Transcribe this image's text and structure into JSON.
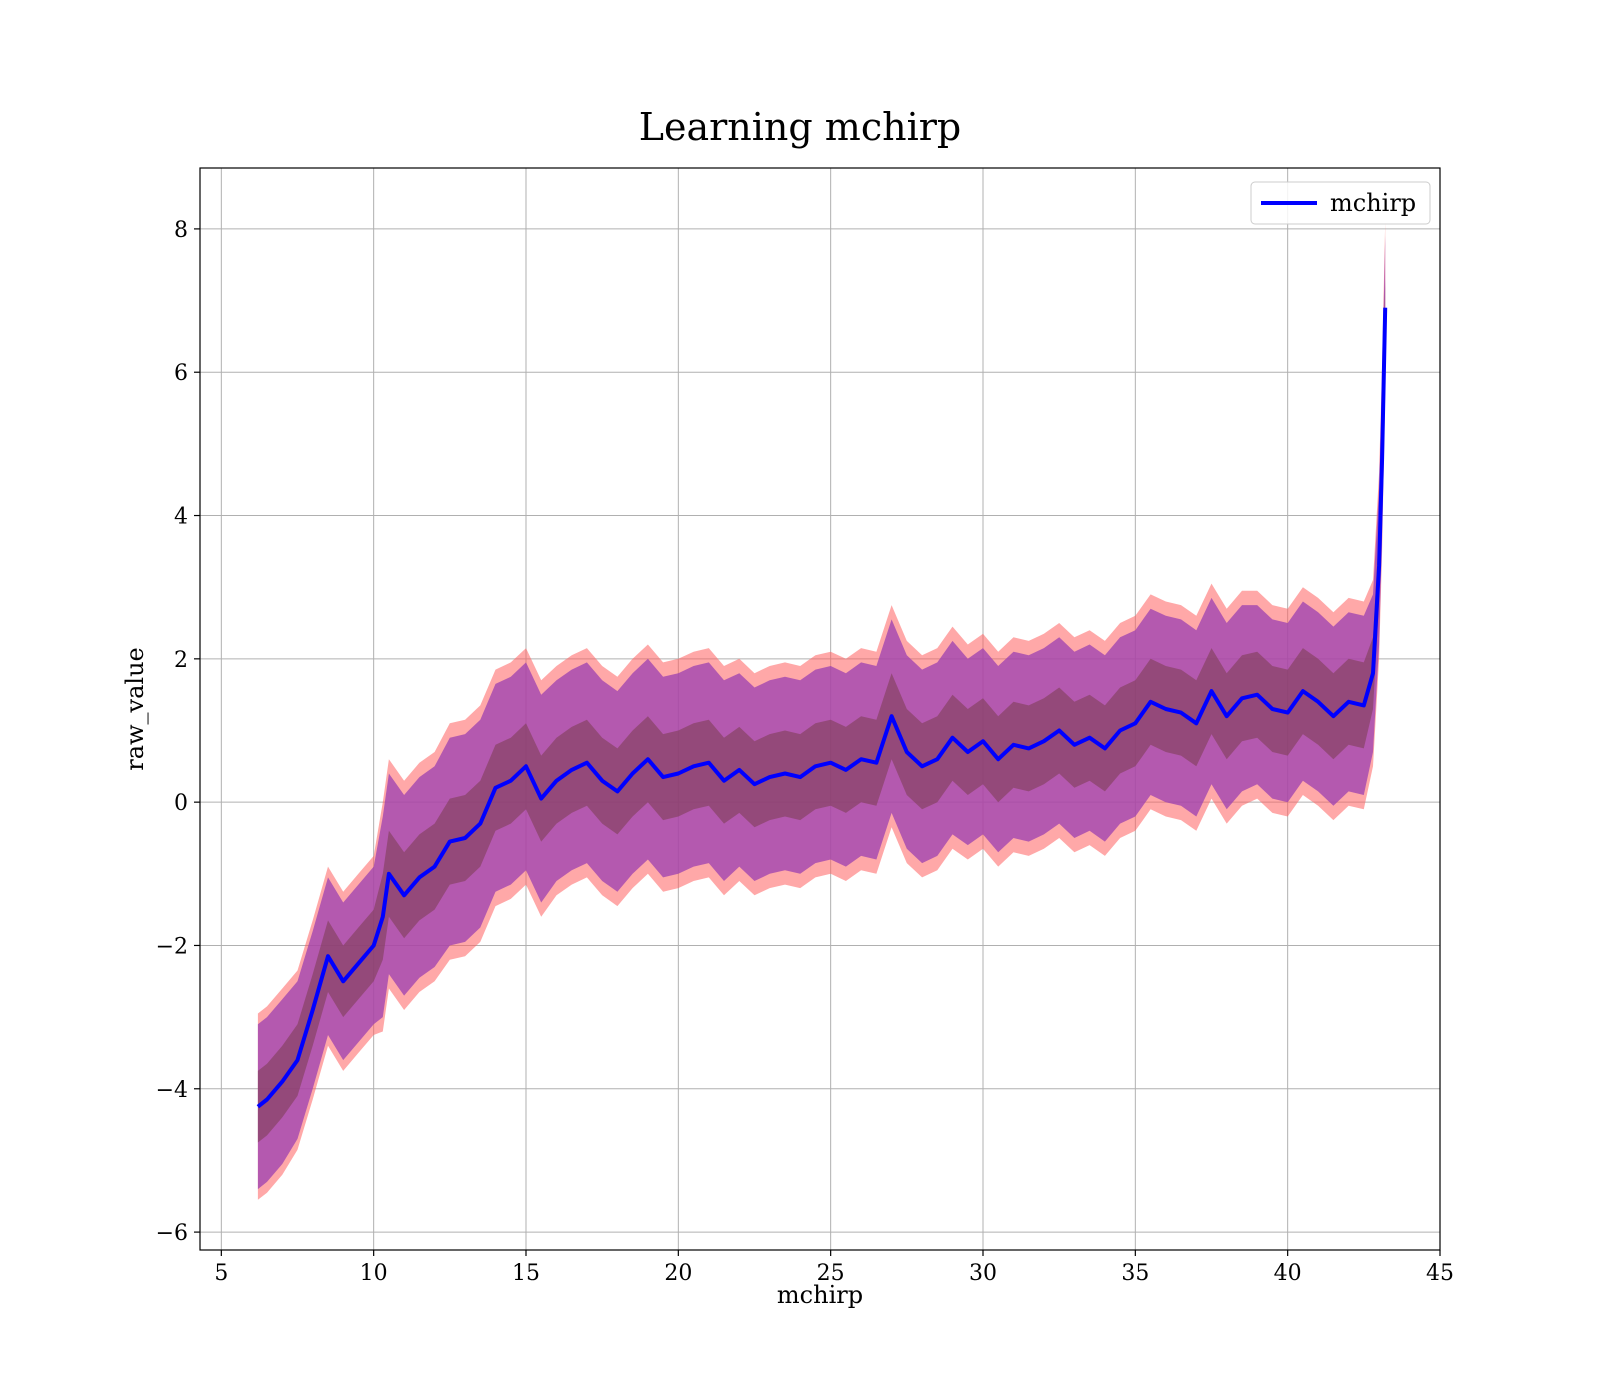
{
  "chart_data": {
    "type": "line",
    "title": "Learning mchirp",
    "xlabel": "mchirp",
    "ylabel": "raw_value",
    "xlim": [
      4.3,
      45
    ],
    "ylim": [
      -6.25,
      8.85
    ],
    "xticks": [
      5,
      10,
      15,
      20,
      25,
      30,
      35,
      40,
      45
    ],
    "yticks": [
      -6,
      -4,
      -2,
      0,
      2,
      4,
      6,
      8
    ],
    "xtick_labels": [
      "5",
      "10",
      "15",
      "20",
      "25",
      "30",
      "35",
      "40",
      "45"
    ],
    "ytick_labels": [
      "−6",
      "−4",
      "−2",
      "0",
      "2",
      "4",
      "6",
      "8"
    ],
    "grid": true,
    "legend": {
      "placement": "top-right",
      "entries": [
        "mchirp"
      ]
    },
    "colors": {
      "line": "#0000ff",
      "outer_band": "#ff6060",
      "mid_band": "#9b3fb2",
      "inner_band": "#7a3d4f"
    },
    "series": [
      {
        "name": "mchirp",
        "x": [
          6.2,
          6.5,
          7.0,
          7.5,
          8.0,
          8.5,
          9.0,
          9.5,
          10.0,
          10.3,
          10.5,
          11.0,
          11.5,
          12.0,
          12.5,
          13.0,
          13.5,
          14.0,
          14.5,
          15.0,
          15.5,
          16.0,
          16.5,
          17.0,
          17.5,
          18.0,
          18.5,
          19.0,
          19.5,
          20.0,
          20.5,
          21.0,
          21.5,
          22.0,
          22.5,
          23.0,
          23.5,
          24.0,
          24.5,
          25.0,
          25.5,
          26.0,
          26.5,
          27.0,
          27.5,
          28.0,
          28.5,
          29.0,
          29.5,
          30.0,
          30.5,
          31.0,
          31.5,
          32.0,
          32.5,
          33.0,
          33.5,
          34.0,
          34.5,
          35.0,
          35.5,
          36.0,
          36.5,
          37.0,
          37.5,
          38.0,
          38.5,
          39.0,
          39.5,
          40.0,
          40.5,
          41.0,
          41.5,
          42.0,
          42.5,
          42.8,
          43.0,
          43.1,
          43.2
        ],
        "y": [
          -4.25,
          -4.15,
          -3.9,
          -3.6,
          -2.9,
          -2.15,
          -2.5,
          -2.25,
          -2.0,
          -1.6,
          -1.0,
          -1.3,
          -1.05,
          -0.9,
          -0.55,
          -0.5,
          -0.3,
          0.2,
          0.3,
          0.5,
          0.05,
          0.3,
          0.45,
          0.55,
          0.3,
          0.15,
          0.4,
          0.6,
          0.35,
          0.4,
          0.5,
          0.55,
          0.3,
          0.45,
          0.25,
          0.35,
          0.4,
          0.35,
          0.5,
          0.55,
          0.45,
          0.6,
          0.55,
          1.2,
          0.7,
          0.5,
          0.6,
          0.9,
          0.7,
          0.85,
          0.6,
          0.8,
          0.75,
          0.85,
          1.0,
          0.8,
          0.9,
          0.75,
          1.0,
          1.1,
          1.4,
          1.3,
          1.25,
          1.1,
          1.55,
          1.2,
          1.45,
          1.5,
          1.3,
          1.25,
          1.55,
          1.4,
          1.2,
          1.4,
          1.35,
          1.8,
          3.3,
          4.8,
          6.9
        ],
        "outer_halfwidth": [
          1.3,
          1.3,
          1.3,
          1.25,
          1.25,
          1.25,
          1.25,
          1.25,
          1.25,
          1.6,
          1.6,
          1.6,
          1.6,
          1.6,
          1.65,
          1.65,
          1.65,
          1.65,
          1.65,
          1.65,
          1.65,
          1.6,
          1.6,
          1.6,
          1.6,
          1.6,
          1.6,
          1.6,
          1.6,
          1.6,
          1.6,
          1.6,
          1.6,
          1.55,
          1.55,
          1.55,
          1.55,
          1.55,
          1.55,
          1.55,
          1.55,
          1.55,
          1.55,
          1.55,
          1.55,
          1.55,
          1.55,
          1.55,
          1.5,
          1.5,
          1.5,
          1.5,
          1.5,
          1.5,
          1.5,
          1.5,
          1.5,
          1.5,
          1.5,
          1.5,
          1.5,
          1.5,
          1.5,
          1.5,
          1.5,
          1.5,
          1.5,
          1.45,
          1.45,
          1.45,
          1.45,
          1.45,
          1.45,
          1.45,
          1.45,
          1.3,
          1.3,
          1.3,
          1.2
        ],
        "mid_halfwidth": [
          1.15,
          1.15,
          1.15,
          1.1,
          1.1,
          1.1,
          1.1,
          1.1,
          1.1,
          1.4,
          1.4,
          1.4,
          1.4,
          1.4,
          1.45,
          1.45,
          1.45,
          1.45,
          1.45,
          1.45,
          1.45,
          1.4,
          1.4,
          1.4,
          1.4,
          1.4,
          1.4,
          1.4,
          1.4,
          1.4,
          1.4,
          1.4,
          1.4,
          1.35,
          1.35,
          1.35,
          1.35,
          1.35,
          1.35,
          1.35,
          1.35,
          1.35,
          1.35,
          1.35,
          1.35,
          1.35,
          1.35,
          1.35,
          1.3,
          1.3,
          1.3,
          1.3,
          1.3,
          1.3,
          1.3,
          1.3,
          1.3,
          1.3,
          1.3,
          1.3,
          1.3,
          1.3,
          1.3,
          1.3,
          1.3,
          1.3,
          1.3,
          1.25,
          1.25,
          1.25,
          1.25,
          1.25,
          1.25,
          1.25,
          1.25,
          1.1,
          1.1,
          1.1,
          1.0
        ],
        "inner_halfwidth": [
          0.5,
          0.5,
          0.5,
          0.5,
          0.5,
          0.5,
          0.5,
          0.5,
          0.5,
          0.6,
          0.6,
          0.6,
          0.6,
          0.6,
          0.6,
          0.6,
          0.6,
          0.6,
          0.6,
          0.6,
          0.6,
          0.6,
          0.6,
          0.6,
          0.6,
          0.6,
          0.6,
          0.6,
          0.6,
          0.6,
          0.6,
          0.6,
          0.6,
          0.6,
          0.6,
          0.6,
          0.6,
          0.6,
          0.6,
          0.6,
          0.6,
          0.6,
          0.6,
          0.6,
          0.6,
          0.6,
          0.6,
          0.6,
          0.6,
          0.6,
          0.6,
          0.6,
          0.6,
          0.6,
          0.6,
          0.6,
          0.6,
          0.6,
          0.6,
          0.6,
          0.6,
          0.6,
          0.6,
          0.6,
          0.6,
          0.6,
          0.6,
          0.6,
          0.6,
          0.6,
          0.6,
          0.6,
          0.6,
          0.6,
          0.6,
          0.5,
          0.5,
          0.5,
          0.4
        ]
      }
    ]
  }
}
